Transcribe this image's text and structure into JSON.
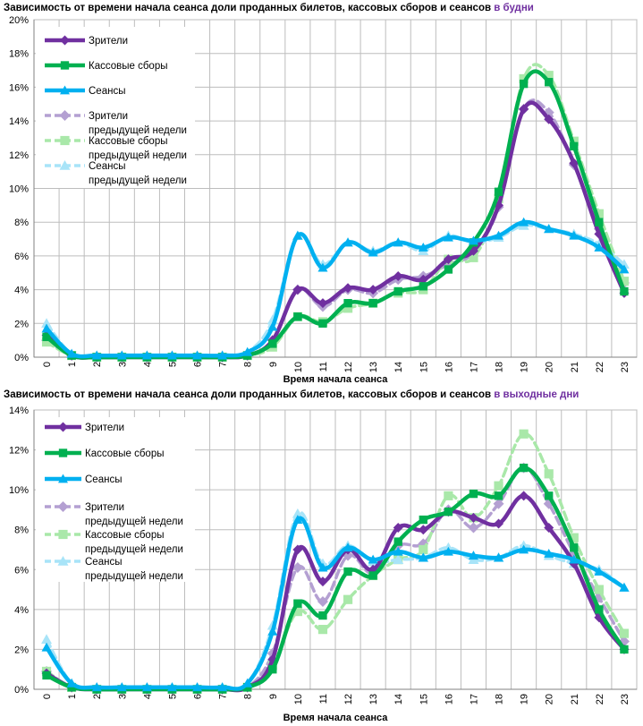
{
  "chart_data": [
    {
      "type": "line",
      "title": "Зависимость от времени начала сеанса доли проданных билетов, кассовых сборов и сеансов",
      "title_accent": "в будни",
      "xlabel": "Время начала сеанса",
      "ylabel": "",
      "ylim": [
        0,
        20
      ],
      "yticks": [
        "0%",
        "2%",
        "4%",
        "6%",
        "8%",
        "10%",
        "12%",
        "14%",
        "16%",
        "18%",
        "20%"
      ],
      "categories": [
        "0",
        "1",
        "2",
        "3",
        "4",
        "5",
        "6",
        "7",
        "8",
        "9",
        "10",
        "11",
        "12",
        "13",
        "14",
        "15",
        "16",
        "17",
        "18",
        "19",
        "20",
        "21",
        "22",
        "23"
      ],
      "series": [
        {
          "name": "Зрители",
          "color": "#7030a0",
          "style": "solid",
          "marker": "diamond",
          "values": [
            1.3,
            0.1,
            0.0,
            0.0,
            0.0,
            0.0,
            0.0,
            0.0,
            0.1,
            1.0,
            4.0,
            3.2,
            4.1,
            4.0,
            4.8,
            4.6,
            5.8,
            6.3,
            9.0,
            14.7,
            14.1,
            11.5,
            7.3,
            3.8
          ]
        },
        {
          "name": "Кассовые сборы",
          "color": "#00b050",
          "style": "solid",
          "marker": "square",
          "values": [
            1.2,
            0.1,
            0.0,
            0.0,
            0.0,
            0.0,
            0.0,
            0.0,
            0.1,
            0.8,
            2.4,
            2.0,
            3.2,
            3.2,
            3.9,
            4.2,
            5.2,
            6.8,
            9.8,
            16.2,
            16.3,
            12.5,
            8.0,
            3.9
          ]
        },
        {
          "name": "Сеансы",
          "color": "#00b0f0",
          "style": "solid",
          "marker": "triangle",
          "values": [
            1.7,
            0.2,
            0.1,
            0.1,
            0.1,
            0.1,
            0.1,
            0.1,
            0.3,
            1.8,
            7.2,
            5.3,
            6.8,
            6.2,
            6.8,
            6.5,
            7.1,
            6.9,
            7.2,
            8.0,
            7.6,
            7.2,
            6.5,
            5.2
          ]
        },
        {
          "name": "Зрители\nпредыдущей недели",
          "color": "#b4a0d2",
          "style": "dashed",
          "marker": "diamond",
          "values": [
            1.0,
            0.1,
            0.0,
            0.0,
            0.0,
            0.0,
            0.0,
            0.0,
            0.1,
            1.0,
            4.0,
            3.0,
            4.0,
            3.8,
            4.6,
            4.8,
            5.5,
            6.2,
            8.9,
            14.7,
            14.5,
            11.4,
            7.6,
            4.4
          ]
        },
        {
          "name": "Кассовые сборы\nпредыдущей недели",
          "color": "#a9e8a9",
          "style": "dashed",
          "marker": "square",
          "values": [
            0.9,
            0.1,
            0.0,
            0.0,
            0.0,
            0.0,
            0.0,
            0.0,
            0.1,
            0.6,
            2.4,
            2.1,
            2.9,
            3.2,
            3.8,
            4.0,
            5.8,
            5.9,
            9.4,
            16.5,
            16.7,
            12.8,
            8.5,
            4.5
          ]
        },
        {
          "name": "Сеансы\nпредыдущей недели",
          "color": "#a8e4f8",
          "style": "dashed",
          "marker": "triangle",
          "values": [
            2.0,
            0.2,
            0.1,
            0.1,
            0.1,
            0.1,
            0.1,
            0.1,
            0.3,
            2.2,
            7.2,
            5.5,
            6.8,
            6.3,
            6.8,
            6.3,
            7.2,
            6.8,
            7.1,
            7.8,
            7.6,
            7.3,
            6.7,
            5.5
          ]
        }
      ]
    },
    {
      "type": "line",
      "title": "Зависимость от времени начала сеанса доли проданных билетов, кассовых сборов и сеансов",
      "title_accent": "в выходные дни",
      "xlabel": "Время начала сеанса",
      "ylabel": "",
      "ylim": [
        0,
        14
      ],
      "yticks": [
        "0%",
        "2%",
        "4%",
        "6%",
        "8%",
        "10%",
        "12%",
        "14%"
      ],
      "categories": [
        "0",
        "1",
        "2",
        "3",
        "4",
        "5",
        "6",
        "7",
        "8",
        "9",
        "10",
        "11",
        "12",
        "13",
        "14",
        "15",
        "16",
        "17",
        "18",
        "19",
        "20",
        "21",
        "22",
        "23"
      ],
      "series": [
        {
          "name": "Зрители",
          "color": "#7030a0",
          "style": "solid",
          "marker": "diamond",
          "values": [
            0.8,
            0.1,
            0.0,
            0.0,
            0.0,
            0.0,
            0.0,
            0.0,
            0.1,
            1.5,
            7.0,
            5.4,
            7.0,
            6.0,
            8.1,
            8.0,
            8.9,
            8.6,
            8.3,
            9.7,
            8.1,
            6.3,
            3.6,
            2.0
          ]
        },
        {
          "name": "Кассовые сборы",
          "color": "#00b050",
          "style": "solid",
          "marker": "square",
          "values": [
            0.7,
            0.1,
            0.0,
            0.0,
            0.0,
            0.0,
            0.0,
            0.0,
            0.1,
            1.0,
            4.3,
            3.7,
            5.9,
            5.7,
            7.4,
            8.5,
            8.9,
            9.8,
            9.7,
            11.1,
            9.7,
            7.1,
            4.0,
            2.0
          ]
        },
        {
          "name": "Сеансы",
          "color": "#00b0f0",
          "style": "solid",
          "marker": "triangle",
          "values": [
            2.1,
            0.3,
            0.1,
            0.1,
            0.1,
            0.1,
            0.1,
            0.1,
            0.3,
            2.9,
            8.5,
            6.1,
            7.1,
            6.5,
            6.9,
            6.6,
            6.9,
            6.7,
            6.6,
            7.0,
            6.8,
            6.5,
            5.9,
            5.1
          ]
        },
        {
          "name": "Зрители\nпредыдущей недели",
          "color": "#b4a0d2",
          "style": "dashed",
          "marker": "diamond",
          "values": [
            0.9,
            0.1,
            0.0,
            0.0,
            0.0,
            0.0,
            0.0,
            0.0,
            0.1,
            1.8,
            6.1,
            4.4,
            6.7,
            5.8,
            7.2,
            7.3,
            9.0,
            8.1,
            9.3,
            11.1,
            9.3,
            6.8,
            4.6,
            2.4
          ]
        },
        {
          "name": "Кассовые сборы\nпредыдущей недели",
          "color": "#a9e8a9",
          "style": "dashed",
          "marker": "square",
          "values": [
            0.9,
            0.1,
            0.0,
            0.0,
            0.0,
            0.0,
            0.0,
            0.0,
            0.1,
            1.2,
            3.9,
            3.0,
            4.5,
            5.7,
            6.5,
            7.0,
            9.7,
            8.6,
            10.2,
            12.8,
            10.8,
            7.6,
            5.0,
            2.8
          ]
        },
        {
          "name": "Сеансы\nпредыдущей недели",
          "color": "#a8e4f8",
          "style": "dashed",
          "marker": "triangle",
          "values": [
            2.5,
            0.3,
            0.1,
            0.1,
            0.1,
            0.1,
            0.1,
            0.1,
            0.3,
            3.2,
            8.8,
            6.3,
            7.2,
            6.4,
            6.5,
            6.6,
            7.1,
            6.5,
            6.6,
            7.2,
            6.7,
            6.3,
            6.0,
            5.1
          ]
        }
      ]
    }
  ]
}
